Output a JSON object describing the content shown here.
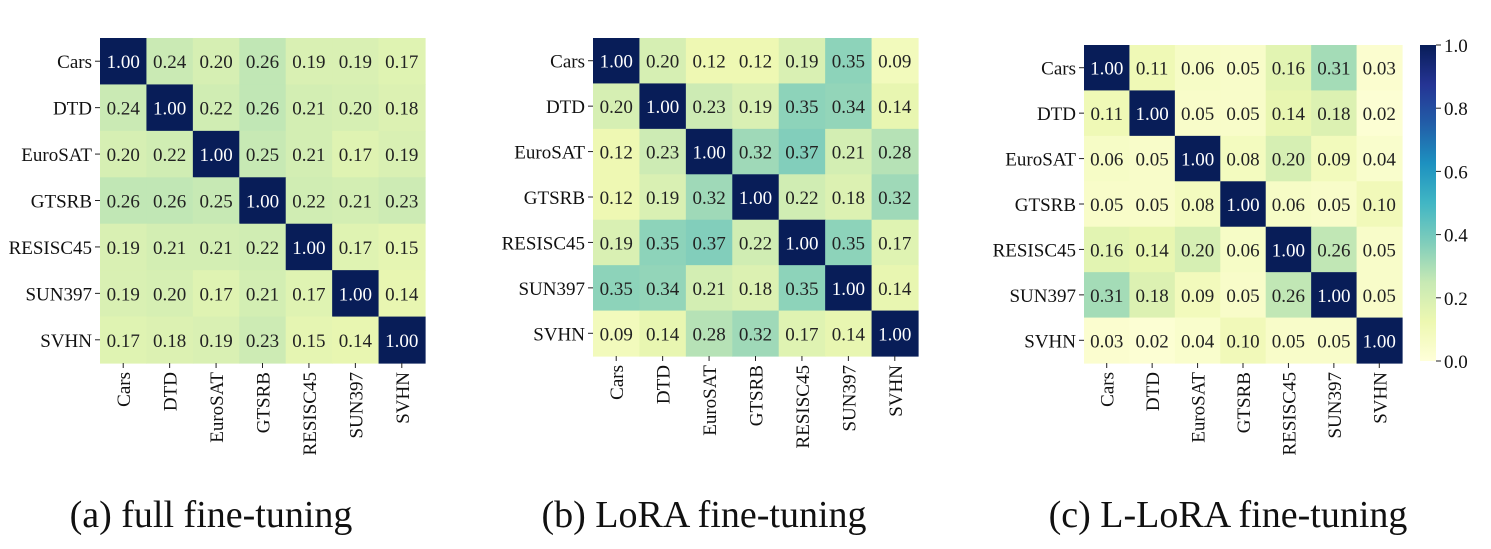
{
  "categories": [
    "Cars",
    "DTD",
    "EuroSAT",
    "GTSRB",
    "RESISC45",
    "SUN397",
    "SVHN"
  ],
  "chart_data": [
    {
      "type": "heatmap",
      "caption": "(a) full fine-tuning",
      "rows": [
        "Cars",
        "DTD",
        "EuroSAT",
        "GTSRB",
        "RESISC45",
        "SUN397",
        "SVHN"
      ],
      "columns": [
        "Cars",
        "DTD",
        "EuroSAT",
        "GTSRB",
        "RESISC45",
        "SUN397",
        "SVHN"
      ],
      "values": [
        [
          "1.00",
          "0.24",
          "0.20",
          "0.26",
          "0.19",
          "0.19",
          "0.17"
        ],
        [
          "0.24",
          "1.00",
          "0.22",
          "0.26",
          "0.21",
          "0.20",
          "0.18"
        ],
        [
          "0.20",
          "0.22",
          "1.00",
          "0.25",
          "0.21",
          "0.17",
          "0.19"
        ],
        [
          "0.26",
          "0.26",
          "0.25",
          "1.00",
          "0.22",
          "0.21",
          "0.23"
        ],
        [
          "0.19",
          "0.21",
          "0.21",
          "0.22",
          "1.00",
          "0.17",
          "0.15"
        ],
        [
          "0.19",
          "0.20",
          "0.17",
          "0.21",
          "0.17",
          "1.00",
          "0.14"
        ],
        [
          "0.17",
          "0.18",
          "0.19",
          "0.23",
          "0.15",
          "0.14",
          "1.00"
        ]
      ]
    },
    {
      "type": "heatmap",
      "caption": "(b) LoRA fine-tuning",
      "rows": [
        "Cars",
        "DTD",
        "EuroSAT",
        "GTSRB",
        "RESISC45",
        "SUN397",
        "SVHN"
      ],
      "columns": [
        "Cars",
        "DTD",
        "EuroSAT",
        "GTSRB",
        "RESISC45",
        "SUN397",
        "SVHN"
      ],
      "values": [
        [
          "1.00",
          "0.20",
          "0.12",
          "0.12",
          "0.19",
          "0.35",
          "0.09"
        ],
        [
          "0.20",
          "1.00",
          "0.23",
          "0.19",
          "0.35",
          "0.34",
          "0.14"
        ],
        [
          "0.12",
          "0.23",
          "1.00",
          "0.32",
          "0.37",
          "0.21",
          "0.28"
        ],
        [
          "0.12",
          "0.19",
          "0.32",
          "1.00",
          "0.22",
          "0.18",
          "0.32"
        ],
        [
          "0.19",
          "0.35",
          "0.37",
          "0.22",
          "1.00",
          "0.35",
          "0.17"
        ],
        [
          "0.35",
          "0.34",
          "0.21",
          "0.18",
          "0.35",
          "1.00",
          "0.14"
        ],
        [
          "0.09",
          "0.14",
          "0.28",
          "0.32",
          "0.17",
          "0.14",
          "1.00"
        ]
      ]
    },
    {
      "type": "heatmap",
      "caption": "(c) L-LoRA fine-tuning",
      "rows": [
        "Cars",
        "DTD",
        "EuroSAT",
        "GTSRB",
        "RESISC45",
        "SUN397",
        "SVHN"
      ],
      "columns": [
        "Cars",
        "DTD",
        "EuroSAT",
        "GTSRB",
        "RESISC45",
        "SUN397",
        "SVHN"
      ],
      "values": [
        [
          "1.00",
          "0.11",
          "0.06",
          "0.05",
          "0.16",
          "0.31",
          "0.03"
        ],
        [
          "0.11",
          "1.00",
          "0.05",
          "0.05",
          "0.14",
          "0.18",
          "0.02"
        ],
        [
          "0.06",
          "0.05",
          "1.00",
          "0.08",
          "0.20",
          "0.09",
          "0.04"
        ],
        [
          "0.05",
          "0.05",
          "0.08",
          "1.00",
          "0.06",
          "0.05",
          "0.10"
        ],
        [
          "0.16",
          "0.14",
          "0.20",
          "0.06",
          "1.00",
          "0.26",
          "0.05"
        ],
        [
          "0.31",
          "0.18",
          "0.09",
          "0.05",
          "0.26",
          "1.00",
          "0.05"
        ],
        [
          "0.03",
          "0.02",
          "0.04",
          "0.10",
          "0.05",
          "0.05",
          "1.00"
        ]
      ]
    }
  ],
  "colorbar": {
    "range": [
      0.0,
      1.0
    ],
    "tick_labels": [
      "0.0",
      "0.2",
      "0.4",
      "0.6",
      "0.8",
      "1.0"
    ],
    "colormap": "YlGnBu",
    "colors": [
      "#ffffd9",
      "#edf8b1",
      "#c7e9b4",
      "#7fcdbb",
      "#41b6c4",
      "#1d91c0",
      "#225ea8",
      "#253494",
      "#081d58"
    ]
  }
}
